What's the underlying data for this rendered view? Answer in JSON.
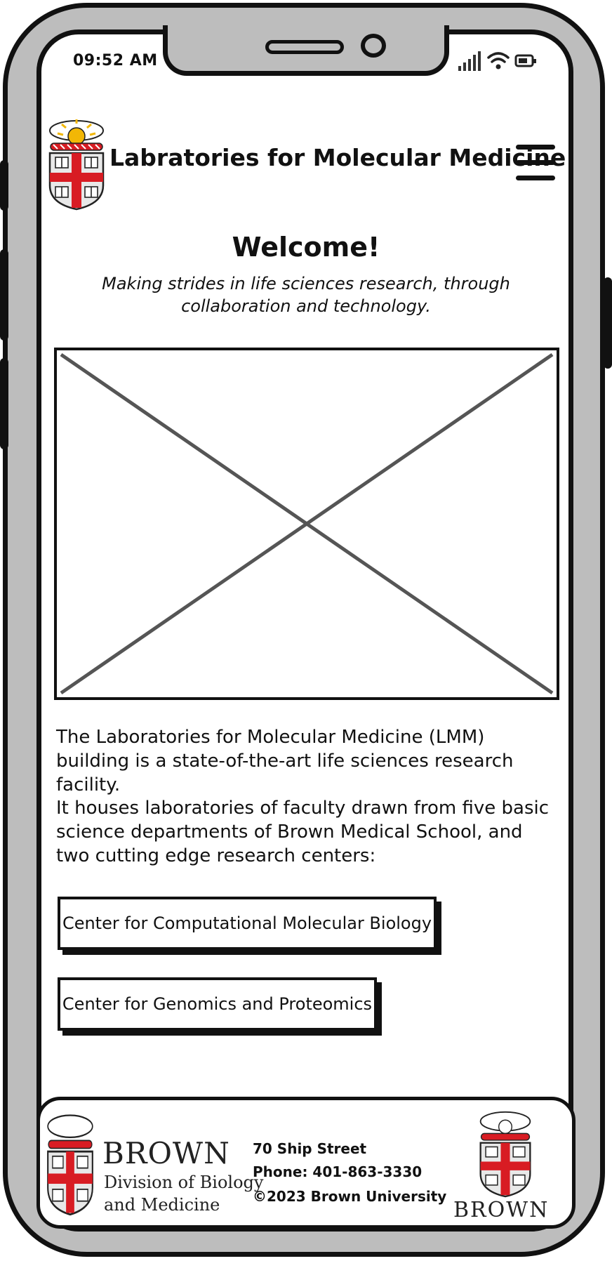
{
  "status_bar": {
    "time": "09:52 AM"
  },
  "header": {
    "title": "Labratories for Molecular Medicine"
  },
  "welcome": {
    "heading": "Welcome!",
    "tagline": "Making strides in life sciences research, through collaboration and technology."
  },
  "content": {
    "paragraph_1": "The Laboratories for Molecular Medicine (LMM) building is a state-of-the-art life sciences research facility.",
    "paragraph_2": "It houses laboratories of faculty drawn from five basic science departments of Brown Medical School, and two cutting edge research centers:"
  },
  "centers": [
    {
      "label": "Center for Computational Molecular Biology"
    },
    {
      "label": "Center for Genomics and Proteomics"
    }
  ],
  "footer": {
    "logo_left": {
      "line1": "BROWN",
      "line2": "Division of Biology",
      "line3": "and Medicine"
    },
    "address": "70 Ship Street",
    "phone": "Phone: 401-863-3330",
    "copyright": "©2023 Brown University",
    "logo_right": {
      "word": "BROWN"
    }
  },
  "colors": {
    "red": "#d81c23",
    "gold": "#f2b705",
    "outline": "#111111",
    "frame": "#bdbdbd"
  },
  "icons": [
    "brown-shield-logo",
    "menu-icon",
    "cellular-signal-icon",
    "wifi-icon",
    "battery-icon",
    "image-placeholder-icon"
  ]
}
